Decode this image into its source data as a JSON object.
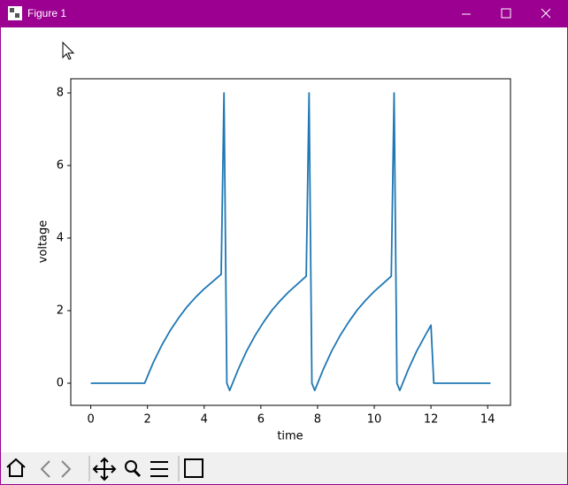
{
  "window": {
    "title": "Figure 1"
  },
  "chart_data": {
    "type": "line",
    "xlabel": "time",
    "ylabel": "voltage",
    "x": [
      0,
      1.9,
      2.2,
      2.5,
      2.8,
      3.1,
      3.4,
      3.7,
      4.0,
      4.3,
      4.6,
      4.7,
      4.8,
      4.9,
      5.2,
      5.5,
      5.8,
      6.1,
      6.4,
      6.7,
      7.0,
      7.3,
      7.6,
      7.7,
      7.8,
      7.9,
      8.2,
      8.5,
      8.8,
      9.1,
      9.4,
      9.7,
      10.0,
      10.3,
      10.6,
      10.7,
      10.8,
      10.9,
      11.2,
      11.5,
      11.8,
      12.0,
      12.1,
      14.1
    ],
    "series": [
      {
        "color": "#1f77b4",
        "values": [
          0,
          0,
          0.56,
          1.04,
          1.45,
          1.8,
          2.11,
          2.37,
          2.6,
          2.8,
          3.0,
          8,
          0,
          -0.2,
          0.38,
          0.89,
          1.32,
          1.69,
          2.02,
          2.29,
          2.53,
          2.74,
          2.95,
          8,
          0,
          -0.2,
          0.38,
          0.89,
          1.32,
          1.69,
          2.02,
          2.29,
          2.53,
          2.74,
          2.95,
          8,
          0,
          -0.2,
          0.38,
          0.89,
          1.32,
          1.6,
          0,
          0
        ]
      }
    ],
    "xlim": [
      -0.705,
      14.805
    ],
    "ylim": [
      -0.61,
      8.39
    ],
    "xticks": [
      0,
      2,
      4,
      6,
      8,
      10,
      12,
      14
    ],
    "yticks": [
      0,
      2,
      4,
      6,
      8
    ],
    "grid": false
  }
}
